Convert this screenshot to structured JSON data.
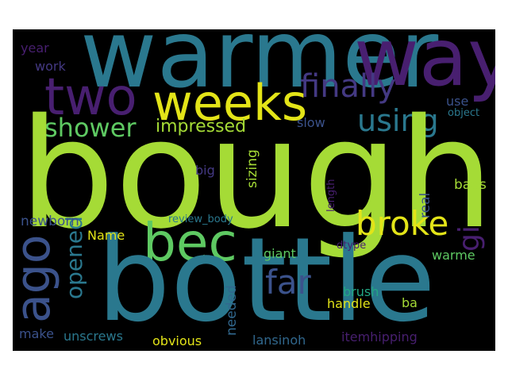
{
  "palette": {
    "lime": "#a5db36",
    "yellow": "#e3e418",
    "green": "#5ec962",
    "teal": "#2a788e",
    "teal2": "#22a884",
    "blue": "#31688e",
    "indigo": "#3b528b",
    "purple": "#443983",
    "dark_purple": "#440154",
    "plum": "#481f70"
  },
  "words": {
    "bought": "bought",
    "bottle": "bottle",
    "warmer": "warmer",
    "way": "way",
    "weeks": "weeks",
    "two": "two",
    "finally": "finally",
    "using": "using",
    "shower": "shower",
    "impressed": "impressed",
    "bec": "bec",
    "broke": "broke",
    "ago": "ago",
    "opened": "opened",
    "far": "far",
    "gi": "gi",
    "year": "year",
    "work": "work",
    "use": "use",
    "object": "object",
    "slow": "slow",
    "sizing": "sizing",
    "big": "big",
    "length": "length",
    "real": "real",
    "bags": "bags",
    "newborn": "newborn",
    "review_body": "review_body",
    "Name": "Name",
    "giant": "giant",
    "dtype": "dtype",
    "warme": "warme",
    "brush": "brush",
    "handle": "handle",
    "ba": "ba",
    "needed": "needed",
    "make": "make",
    "unscrews": "unscrews",
    "obvious": "obvious",
    "lansinoh": "lansinoh",
    "itemhipping": "itemhipping"
  }
}
